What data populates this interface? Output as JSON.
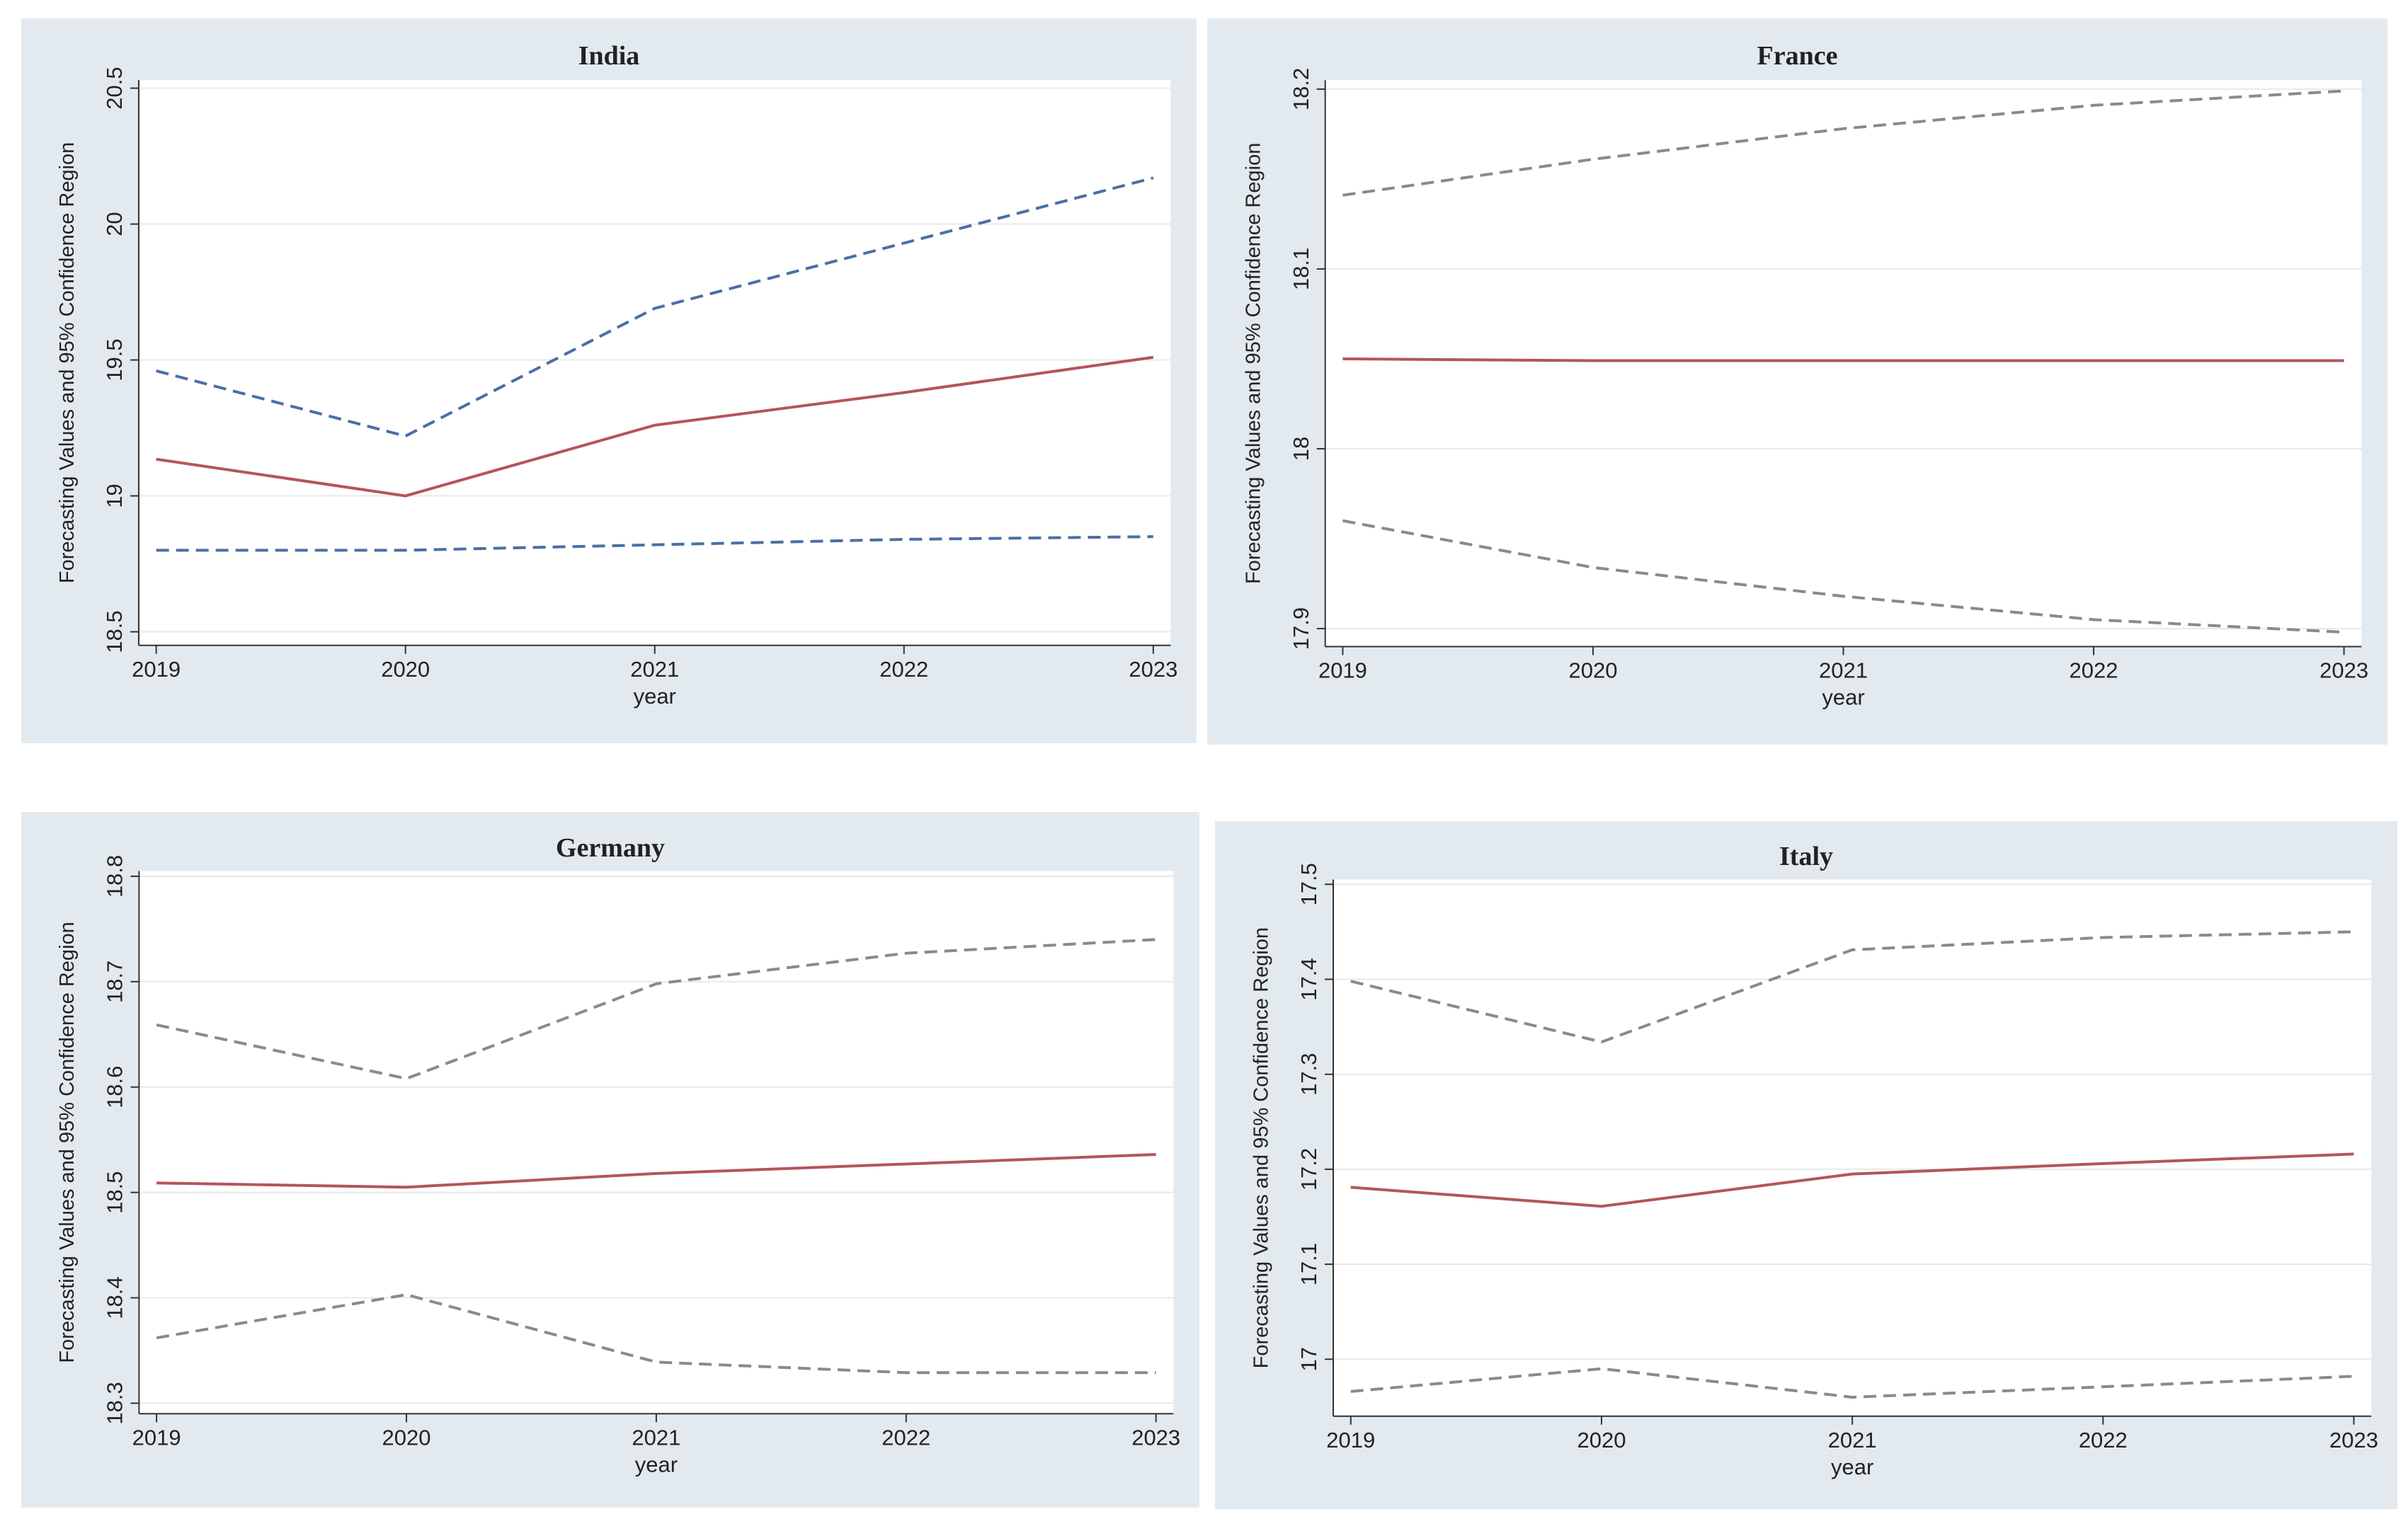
{
  "chart_data": [
    {
      "type": "line",
      "title": "India",
      "xlabel": "year",
      "ylabel": "Forecasting Values and 95% Confidence Region",
      "x": [
        2019,
        2020,
        2021,
        2022,
        2023
      ],
      "xlim": [
        2018.93,
        2023.07
      ],
      "xticks": [
        2019,
        2020,
        2021,
        2022,
        2023
      ],
      "ylim": [
        18.45,
        20.53
      ],
      "yticks": [
        18.5,
        19,
        19.5,
        20,
        20.5
      ],
      "grid": true,
      "series": [
        {
          "color": "#b5545c",
          "style": "solid",
          "values": [
            19.135,
            19.0,
            19.26,
            19.38,
            19.51
          ]
        },
        {
          "color": "#4a6fa5",
          "style": "dashed",
          "values": [
            19.46,
            19.22,
            19.69,
            19.93,
            20.17
          ]
        },
        {
          "color": "#4a6fa5",
          "style": "dashed",
          "values": [
            18.8,
            18.8,
            18.82,
            18.84,
            18.85
          ]
        }
      ]
    },
    {
      "type": "line",
      "title": "France",
      "xlabel": "year",
      "ylabel": "Forecasting Values and 95% Confidence Region",
      "x": [
        2019,
        2020,
        2021,
        2022,
        2023
      ],
      "xlim": [
        2018.93,
        2023.07
      ],
      "xticks": [
        2019,
        2020,
        2021,
        2022,
        2023
      ],
      "ylim": [
        17.89,
        18.205
      ],
      "yticks": [
        17.9,
        18,
        18.1,
        18.2
      ],
      "grid": true,
      "series": [
        {
          "color": "#b5545c",
          "style": "solid",
          "values": [
            18.05,
            18.049,
            18.049,
            18.049,
            18.049
          ]
        },
        {
          "color": "#8a8a8a",
          "style": "dashed",
          "values": [
            18.141,
            18.161,
            18.178,
            18.191,
            18.199
          ]
        },
        {
          "color": "#8a8a8a",
          "style": "dashed",
          "values": [
            17.96,
            17.934,
            17.918,
            17.905,
            17.898
          ]
        }
      ]
    },
    {
      "type": "line",
      "title": "Germany",
      "xlabel": "year",
      "ylabel": "Forecasting Values and 95% Confidence Region",
      "x": [
        2019,
        2020,
        2021,
        2022,
        2023
      ],
      "xlim": [
        2018.93,
        2023.07
      ],
      "xticks": [
        2019,
        2020,
        2021,
        2022,
        2023
      ],
      "ylim": [
        18.29,
        18.805
      ],
      "yticks": [
        18.3,
        18.4,
        18.5,
        18.6,
        18.7,
        18.8
      ],
      "grid": true,
      "series": [
        {
          "color": "#b5545c",
          "style": "solid",
          "values": [
            18.509,
            18.505,
            18.518,
            18.527,
            18.536
          ]
        },
        {
          "color": "#8a8a8a",
          "style": "dashed",
          "values": [
            18.659,
            18.608,
            18.698,
            18.727,
            18.74
          ]
        },
        {
          "color": "#8a8a8a",
          "style": "dashed",
          "values": [
            18.362,
            18.403,
            18.339,
            18.329,
            18.329
          ]
        }
      ]
    },
    {
      "type": "line",
      "title": "Italy",
      "xlabel": "year",
      "ylabel": "Forecasting Values and 95% Confidence Region",
      "x": [
        2019,
        2020,
        2021,
        2022,
        2023
      ],
      "xlim": [
        2018.93,
        2023.07
      ],
      "xticks": [
        2019,
        2020,
        2021,
        2022,
        2023
      ],
      "ylim": [
        16.94,
        17.505
      ],
      "yticks": [
        17,
        17.1,
        17.2,
        17.3,
        17.4,
        17.5
      ],
      "grid": true,
      "series": [
        {
          "color": "#b5545c",
          "style": "solid",
          "values": [
            17.181,
            17.161,
            17.195,
            17.206,
            17.216
          ]
        },
        {
          "color": "#8a8a8a",
          "style": "dashed",
          "values": [
            17.398,
            17.334,
            17.431,
            17.444,
            17.45
          ]
        },
        {
          "color": "#8a8a8a",
          "style": "dashed",
          "values": [
            16.966,
            16.99,
            16.96,
            16.971,
            16.982
          ]
        }
      ]
    }
  ]
}
